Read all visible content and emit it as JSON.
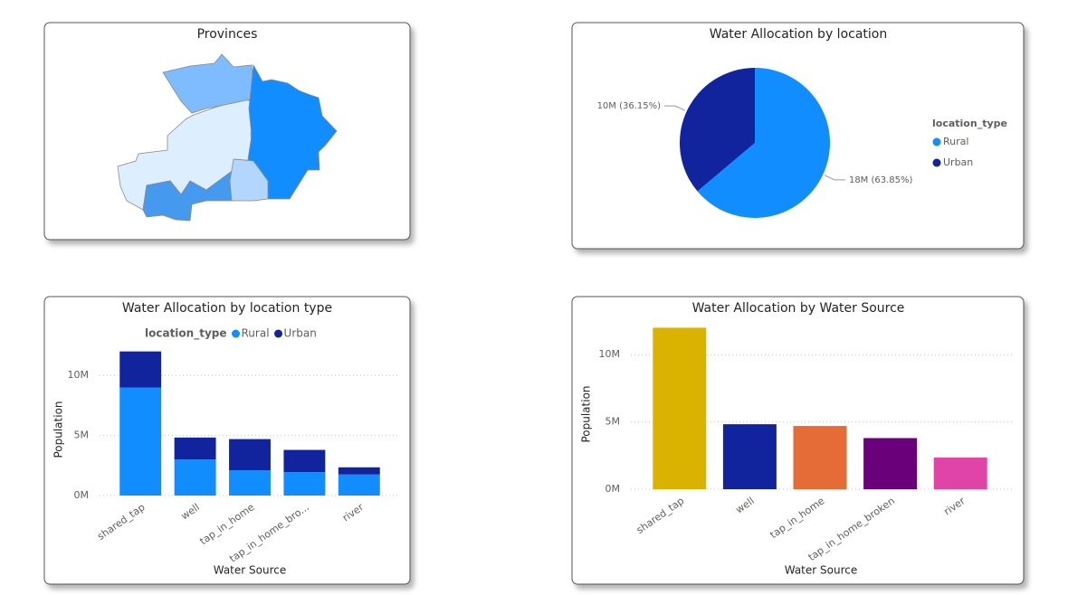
{
  "chart_data": [
    {
      "type": "map",
      "title": "Provinces"
    },
    {
      "type": "pie",
      "title": "Water Allocation by location",
      "legend_title": "location_type",
      "categories": [
        "Rural",
        "Urban"
      ],
      "values": [
        63.85,
        36.15
      ],
      "value_labels": [
        "18M (63.85%)",
        "10M (36.15%)"
      ],
      "colors": [
        "#118dff",
        "#12239e"
      ],
      "legend": "right"
    },
    {
      "type": "stacked_bar",
      "title": "Water Allocation by location type",
      "legend_title": "location_type",
      "legend": "top",
      "categories": [
        "shared_tap",
        "well",
        "tap_in_home",
        "tap_in_home_bro...",
        "river"
      ],
      "series": [
        {
          "name": "Rural",
          "color": "#118dff",
          "values": [
            9000000,
            3000000,
            2100000,
            1950000,
            1750000
          ]
        },
        {
          "name": "Urban",
          "color": "#12239e",
          "values": [
            3000000,
            1830000,
            2600000,
            1850000,
            600000
          ]
        }
      ],
      "ylim": [
        0,
        12500000
      ],
      "yticks": [
        {
          "value": 0,
          "label": "0M"
        },
        {
          "value": 5000000,
          "label": "5M"
        },
        {
          "value": 10000000,
          "label": "10M"
        }
      ],
      "y_label": "Population",
      "x_label": "Water Source",
      "grid": true
    },
    {
      "type": "bar",
      "title": "Water Allocation by Water Source",
      "categories": [
        "shared_tap",
        "well",
        "tap_in_home",
        "tap_in_home_broken",
        "river"
      ],
      "values": [
        12000000,
        4830000,
        4700000,
        3800000,
        2350000
      ],
      "colors": [
        "#d9b300",
        "#12239e",
        "#e66c37",
        "#6b007b",
        "#e044a7"
      ],
      "ylim": [
        0,
        12500000
      ],
      "yticks": [
        {
          "value": 0,
          "label": "0M"
        },
        {
          "value": 5000000,
          "label": "5M"
        },
        {
          "value": 10000000,
          "label": "10M"
        }
      ],
      "y_label": "Population",
      "x_label": "Water Source",
      "grid": true
    }
  ]
}
